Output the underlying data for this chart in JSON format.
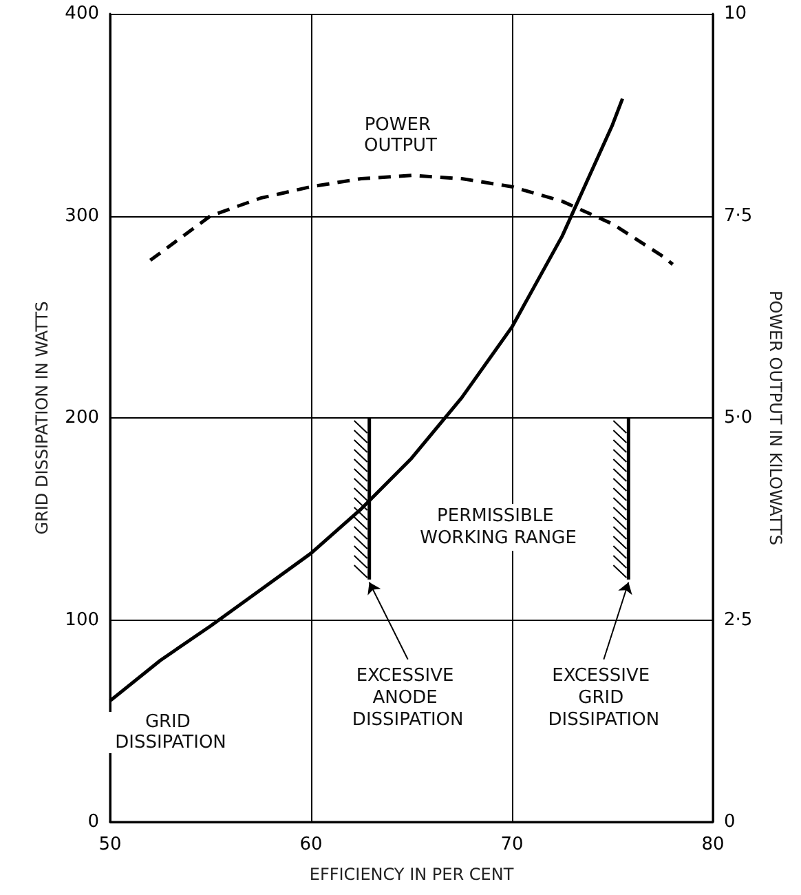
{
  "chart_data": {
    "type": "line",
    "xlabel": "EFFICIENCY IN PER CENT",
    "ylabel": "GRID DISSIPATION IN WATTS",
    "y2label": "POWER OUTPUT IN KILOWATTS",
    "xlim": [
      50,
      80
    ],
    "xticks": [
      50,
      60,
      70,
      80
    ],
    "ylim": [
      0,
      400
    ],
    "yticks": [
      0,
      100,
      200,
      300,
      400
    ],
    "y2lim": [
      0,
      10
    ],
    "y2ticks": [
      0,
      {
        "value": 2.5,
        "label": "2·5"
      },
      {
        "value": 5,
        "label": "5·0"
      },
      {
        "value": 7.5,
        "label": "7·5"
      },
      10
    ],
    "grid": true,
    "legend": false,
    "series": [
      {
        "name": "GRID DISSIPATION",
        "color": "#000000",
        "line_style": "solid",
        "x": [
          50,
          52.5,
          55,
          57.5,
          60,
          62.5,
          65,
          67.5,
          70,
          72.5,
          75,
          75.5
        ],
        "values": [
          60,
          80,
          97,
          115,
          133,
          155,
          180,
          210,
          245,
          290,
          345,
          358
        ]
      },
      {
        "name": "POWER OUTPUT",
        "color": "#000000",
        "line_style": "dashed",
        "axis": "y2",
        "x": [
          52,
          55,
          57.5,
          60,
          62.5,
          65,
          67.5,
          70,
          72.5,
          75,
          77.5,
          78
        ],
        "values": [
          6.95,
          7.5,
          7.72,
          7.86,
          7.96,
          8.0,
          7.96,
          7.86,
          7.68,
          7.4,
          7.0,
          6.9
        ]
      },
      {
        "color": "#000000",
        "line_style": "solid",
        "x": [
          62.9,
          62.9
        ],
        "values": [
          200,
          120
        ]
      },
      {
        "color": "#000000",
        "line_style": "solid",
        "x": [
          75.8,
          75.8
        ],
        "values": [
          200,
          120
        ]
      }
    ],
    "annotations": [
      "PERMISSIBLE WORKING RANGE",
      {
        "text": "EXCESSIVE ANODE DISSIPATION",
        "x": 62.9,
        "y": 120
      },
      {
        "text": "EXCESSIVE GRID DISSIPATION",
        "x": 75.8,
        "y": 120
      }
    ]
  }
}
